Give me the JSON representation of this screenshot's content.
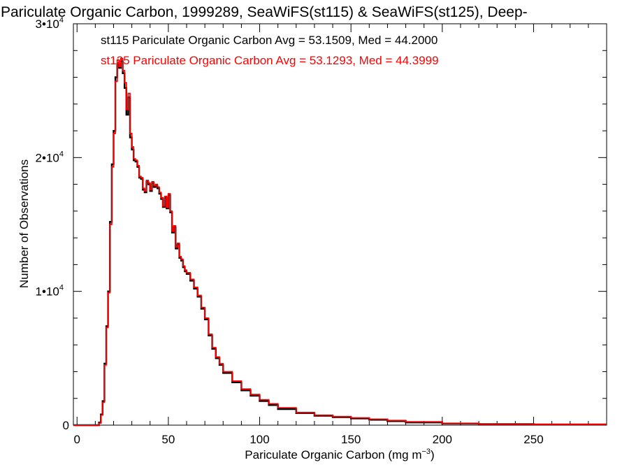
{
  "chart_data": {
    "type": "histogram",
    "title": "Pariculate Organic Carbon, 1999289, SeaWiFS(st115) & SeaWiFS(st125), Deep-",
    "xlabel_main": "Pariculate Organic Carbon (mg m",
    "xlabel_exp": "−3",
    "xlabel_close": ")",
    "ylabel": "Number of Observations",
    "xlim": [
      -2,
      290
    ],
    "ylim": [
      0,
      30000
    ],
    "x_ticks": [
      {
        "value": 0,
        "label": "0"
      },
      {
        "value": 50,
        "label": "50"
      },
      {
        "value": 100,
        "label": "100"
      },
      {
        "value": 150,
        "label": "150"
      },
      {
        "value": 200,
        "label": "200"
      },
      {
        "value": 250,
        "label": "250"
      }
    ],
    "y_ticks": [
      {
        "value": 0,
        "label": "0",
        "exp": ""
      },
      {
        "value": 10000,
        "label": "1•10",
        "exp": "4"
      },
      {
        "value": 20000,
        "label": "2•10",
        "exp": "4"
      },
      {
        "value": 30000,
        "label": "3•10",
        "exp": "4"
      }
    ],
    "grid": false,
    "legend_position": "top-left",
    "series": [
      {
        "name": "st115",
        "legend_text": "st115 Pariculate Organic Carbon Avg = 53.1509, Med = 44.2000",
        "color": "#000000",
        "x": [
          -2,
          10,
          12,
          13,
          14,
          15,
          16,
          17,
          18,
          19,
          20,
          21,
          22,
          23,
          24,
          25,
          26,
          27,
          28,
          29,
          30,
          31,
          32,
          33,
          34,
          35,
          36,
          37,
          38,
          39,
          40,
          41,
          42,
          43,
          44,
          45,
          46,
          47,
          48,
          49,
          50,
          51,
          52,
          53,
          54,
          55,
          56,
          57,
          58,
          59,
          60,
          62,
          64,
          66,
          68,
          70,
          72,
          74,
          76,
          78,
          80,
          85,
          90,
          95,
          100,
          105,
          110,
          120,
          130,
          140,
          150,
          160,
          170,
          180,
          200,
          220,
          250,
          290
        ],
        "values": [
          0,
          0,
          200,
          800,
          1800,
          4600,
          7400,
          10000,
          15200,
          19500,
          22000,
          26000,
          27000,
          26700,
          27200,
          26300,
          25200,
          23200,
          24500,
          21500,
          20600,
          19800,
          19700,
          19300,
          18500,
          18400,
          17600,
          17400,
          18200,
          18000,
          17500,
          18100,
          17800,
          17900,
          17700,
          17300,
          16900,
          16300,
          17000,
          16200,
          17200,
          15900,
          14400,
          14800,
          13200,
          13500,
          12500,
          12300,
          11800,
          11500,
          11300,
          10800,
          10200,
          9600,
          8700,
          7900,
          6700,
          5700,
          5000,
          4500,
          3900,
          3200,
          2600,
          2200,
          1800,
          1500,
          1200,
          900,
          700,
          600,
          500,
          400,
          300,
          200,
          120,
          80,
          50
        ]
      },
      {
        "name": "st125",
        "legend_text": "st125 Pariculate Organic Carbon Avg = 53.1293, Med = 44.3999",
        "color": "#ff0000",
        "x": [
          -2,
          10,
          12,
          13,
          14,
          15,
          16,
          17,
          18,
          19,
          20,
          21,
          22,
          23,
          24,
          25,
          26,
          27,
          28,
          29,
          30,
          31,
          32,
          33,
          34,
          35,
          36,
          37,
          38,
          39,
          40,
          41,
          42,
          43,
          44,
          45,
          46,
          47,
          48,
          49,
          50,
          51,
          52,
          53,
          54,
          55,
          56,
          57,
          58,
          59,
          60,
          62,
          64,
          66,
          68,
          70,
          72,
          74,
          76,
          78,
          80,
          85,
          90,
          95,
          100,
          105,
          110,
          120,
          130,
          140,
          150,
          160,
          170,
          180,
          200,
          220,
          250,
          290
        ],
        "values": [
          0,
          0,
          150,
          750,
          1700,
          4500,
          7300,
          9900,
          15000,
          19300,
          21800,
          25700,
          27300,
          26800,
          27400,
          26500,
          25600,
          23600,
          24800,
          21800,
          20800,
          19900,
          19800,
          19400,
          18600,
          18500,
          17700,
          17500,
          18300,
          18100,
          17600,
          18200,
          17900,
          18000,
          17800,
          17400,
          17000,
          16400,
          17100,
          16300,
          17300,
          16000,
          14500,
          14900,
          13300,
          13600,
          12600,
          12400,
          11900,
          11600,
          11400,
          10900,
          10300,
          9700,
          8800,
          8000,
          6800,
          5800,
          5100,
          4600,
          4000,
          3300,
          2700,
          2300,
          1900,
          1600,
          1300,
          950,
          750,
          650,
          550,
          450,
          350,
          250,
          140,
          90,
          60
        ]
      }
    ]
  }
}
